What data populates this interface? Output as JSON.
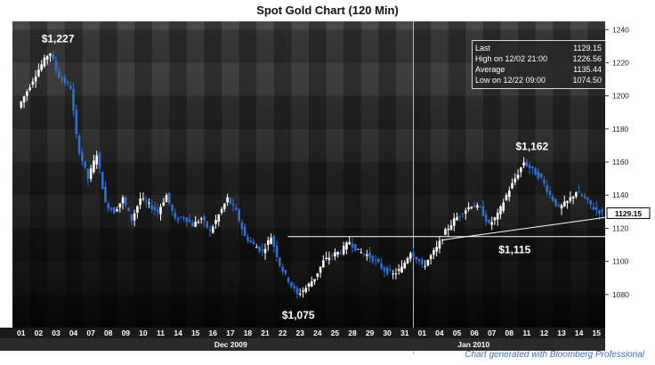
{
  "chart_data": {
    "type": "candlestick",
    "title": "Spot Gold Chart (120 Min)",
    "ylim": [
      1060,
      1245
    ],
    "yticks": [
      1080,
      1100,
      1120,
      1140,
      1160,
      1180,
      1200,
      1220,
      1240
    ],
    "ytick_labels": [
      "1080",
      "1100",
      "1120",
      "1140",
      "1160",
      "1180",
      "1200",
      "1220",
      "1240"
    ],
    "x_day_labels": [
      "01",
      "02",
      "03",
      "04",
      "07",
      "08",
      "09",
      "10",
      "11",
      "14",
      "15",
      "16",
      "17",
      "18",
      "21",
      "22",
      "23",
      "24",
      "25",
      "28",
      "29",
      "30",
      "31",
      "01",
      "04",
      "05",
      "06",
      "07",
      "08",
      "11",
      "12",
      "13",
      "14",
      "15"
    ],
    "x_month_labels": [
      "Dec 2009",
      "Jan 2010"
    ],
    "last_price_label": "1129.15",
    "series": [
      {
        "name": "Spot Gold",
        "price_path": [
          [
            0,
            1193
          ],
          [
            1,
            1213
          ],
          [
            1.8,
            1227
          ],
          [
            2.3,
            1212
          ],
          [
            3,
            1205
          ],
          [
            3.4,
            1170
          ],
          [
            4,
            1150
          ],
          [
            4.5,
            1165
          ],
          [
            5,
            1135
          ],
          [
            5.5,
            1130
          ],
          [
            6,
            1138
          ],
          [
            6.5,
            1125
          ],
          [
            7,
            1138
          ],
          [
            7.5,
            1134
          ],
          [
            8,
            1130
          ],
          [
            8.5,
            1140
          ],
          [
            9,
            1125
          ],
          [
            9.5,
            1127
          ],
          [
            10,
            1122
          ],
          [
            10.5,
            1126
          ],
          [
            11,
            1118
          ],
          [
            11.5,
            1128
          ],
          [
            12,
            1138
          ],
          [
            12.5,
            1130
          ],
          [
            13,
            1115
          ],
          [
            13.5,
            1110
          ],
          [
            14,
            1106
          ],
          [
            14.5,
            1115
          ],
          [
            15,
            1098
          ],
          [
            15.3,
            1092
          ],
          [
            16,
            1080
          ],
          [
            16.5,
            1084
          ],
          [
            17,
            1090
          ],
          [
            17.5,
            1100
          ],
          [
            18,
            1104
          ],
          [
            18.5,
            1106
          ],
          [
            19,
            1112
          ],
          [
            19.5,
            1106
          ],
          [
            20,
            1104
          ],
          [
            20.5,
            1100
          ],
          [
            21,
            1095
          ],
          [
            21.5,
            1092
          ],
          [
            22,
            1096
          ],
          [
            22.5,
            1106
          ],
          [
            23,
            1100
          ],
          [
            23.2,
            1096
          ],
          [
            23.5,
            1101
          ],
          [
            24,
            1108
          ],
          [
            24.5,
            1118
          ],
          [
            25,
            1125
          ],
          [
            25.5,
            1130
          ],
          [
            26,
            1134
          ],
          [
            26.5,
            1132
          ],
          [
            27,
            1122
          ],
          [
            27.5,
            1128
          ],
          [
            28,
            1140
          ],
          [
            28.5,
            1150
          ],
          [
            29,
            1160
          ],
          [
            29.5,
            1155
          ],
          [
            30,
            1150
          ],
          [
            30.5,
            1140
          ],
          [
            31,
            1132
          ],
          [
            31.5,
            1136
          ],
          [
            32,
            1142
          ],
          [
            32.5,
            1138
          ],
          [
            33,
            1132
          ],
          [
            33.5,
            1129.15
          ]
        ]
      }
    ],
    "annotations": [
      {
        "text": "$1,227",
        "x": 1.8,
        "y": 1227
      },
      {
        "text": "$1,162",
        "x": 29.0,
        "y": 1162
      },
      {
        "text": "$1,075",
        "x": 16.0,
        "y": 1075
      },
      {
        "text": "$1,115",
        "x": 28.0,
        "y": 1115
      }
    ],
    "support_level": 1115,
    "trendline": {
      "from": [
        24.2,
        1113
      ],
      "to": [
        33.8,
        1127
      ]
    }
  },
  "stats": [
    {
      "label": "Last",
      "value": "1129.15"
    },
    {
      "label": "High on  12/02 21:00",
      "value": "1226.56"
    },
    {
      "label": "Average",
      "value": "1135.44"
    },
    {
      "label": "Low on  12/22 09:00",
      "value": "1074.50"
    }
  ],
  "credit": "Chart generated with Bloomberg Professional",
  "colors": {
    "up": "#ffffff",
    "down": "#2f6fd6",
    "line": "#ffffff",
    "bg_dark": "#0c0c0c"
  }
}
